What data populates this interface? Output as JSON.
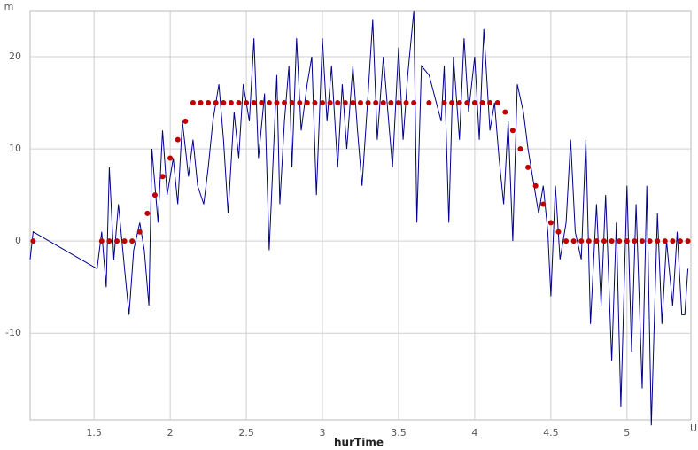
{
  "chart_data": {
    "type": "line",
    "x_label": "hurTime",
    "y_unit": "m",
    "x_unit": "U",
    "xlim": [
      1.08,
      5.42
    ],
    "ylim": [
      -19.4,
      25
    ],
    "xticks": [
      1.5,
      2,
      2.5,
      3,
      3.5,
      4,
      4.5,
      5
    ],
    "yticks": [
      -10,
      0,
      10,
      20
    ],
    "grid": true,
    "series": [
      {
        "color": "#00008b",
        "style": "line",
        "x": [
          1.08,
          1.1,
          1.52,
          1.55,
          1.58,
          1.6,
          1.63,
          1.66,
          1.7,
          1.73,
          1.76,
          1.8,
          1.83,
          1.86,
          1.88,
          1.92,
          1.95,
          1.98,
          2.02,
          2.05,
          2.08,
          2.12,
          2.15,
          2.18,
          2.22,
          2.25,
          2.28,
          2.32,
          2.35,
          2.38,
          2.42,
          2.45,
          2.48,
          2.52,
          2.55,
          2.58,
          2.62,
          2.65,
          2.7,
          2.72,
          2.75,
          2.78,
          2.8,
          2.83,
          2.86,
          2.9,
          2.93,
          2.96,
          3.0,
          3.03,
          3.06,
          3.1,
          3.13,
          3.16,
          3.2,
          3.23,
          3.26,
          3.3,
          3.33,
          3.36,
          3.4,
          3.43,
          3.46,
          3.5,
          3.53,
          3.56,
          3.6,
          3.62,
          3.65,
          3.7,
          3.78,
          3.8,
          3.83,
          3.86,
          3.9,
          3.93,
          3.96,
          4.0,
          4.03,
          4.06,
          4.1,
          4.13,
          4.16,
          4.19,
          4.22,
          4.25,
          4.28,
          4.32,
          4.35,
          4.38,
          4.42,
          4.45,
          4.48,
          4.5,
          4.53,
          4.56,
          4.6,
          4.63,
          4.66,
          4.7,
          4.73,
          4.76,
          4.8,
          4.83,
          4.86,
          4.9,
          4.93,
          4.96,
          5.0,
          5.03,
          5.06,
          5.1,
          5.13,
          5.16,
          5.2,
          5.23,
          5.26,
          5.3,
          5.33,
          5.36,
          5.38,
          5.4
        ],
        "values": [
          -2,
          1,
          -3,
          1,
          -5,
          8,
          -2,
          4,
          -3,
          -8,
          -1,
          2,
          -1,
          -7,
          10,
          2,
          12,
          5,
          9,
          4,
          13,
          7,
          11,
          6,
          4,
          8,
          13,
          17,
          11,
          3,
          14,
          9,
          17,
          13,
          22,
          9,
          16,
          -1,
          18,
          4,
          13,
          19,
          8,
          22,
          12,
          17,
          20,
          5,
          22,
          13,
          19,
          8,
          17,
          10,
          19,
          12,
          6,
          16,
          24,
          11,
          20,
          14,
          8,
          21,
          11,
          18,
          25,
          2,
          19,
          18,
          13,
          19,
          2,
          20,
          11,
          22,
          14,
          20,
          11,
          23,
          12,
          15,
          9,
          4,
          13,
          0,
          17,
          14,
          10,
          7,
          3,
          6,
          1,
          -6,
          6,
          -2,
          2,
          11,
          1,
          -2,
          11,
          -9,
          4,
          -7,
          5,
          -13,
          2,
          -18,
          6,
          -12,
          4,
          -16,
          6,
          -20,
          3,
          -9,
          0,
          -7,
          1,
          -8,
          -8,
          -3
        ]
      },
      {
        "color": "#c00000",
        "style": "dots",
        "x": [
          1.1,
          1.55,
          1.6,
          1.65,
          1.7,
          1.75,
          1.8,
          1.85,
          1.9,
          1.95,
          2.0,
          2.05,
          2.1,
          2.15,
          2.2,
          2.25,
          2.3,
          2.35,
          2.4,
          2.45,
          2.5,
          2.55,
          2.6,
          2.65,
          2.7,
          2.75,
          2.8,
          2.85,
          2.9,
          2.95,
          3.0,
          3.05,
          3.1,
          3.15,
          3.2,
          3.25,
          3.3,
          3.35,
          3.4,
          3.45,
          3.5,
          3.55,
          3.6,
          3.7,
          3.8,
          3.85,
          3.9,
          3.95,
          4.0,
          4.05,
          4.1,
          4.15,
          4.2,
          4.25,
          4.3,
          4.35,
          4.4,
          4.45,
          4.5,
          4.55,
          4.6,
          4.65,
          4.7,
          4.75,
          4.8,
          4.85,
          4.9,
          4.95,
          5.0,
          5.05,
          5.1,
          5.15,
          5.2,
          5.25,
          5.3,
          5.35,
          5.4
        ],
        "values": [
          0,
          0,
          0,
          0,
          0,
          0,
          1,
          3,
          5,
          7,
          9,
          11,
          13,
          15,
          15,
          15,
          15,
          15,
          15,
          15,
          15,
          15,
          15,
          15,
          15,
          15,
          15,
          15,
          15,
          15,
          15,
          15,
          15,
          15,
          15,
          15,
          15,
          15,
          15,
          15,
          15,
          15,
          15,
          15,
          15,
          15,
          15,
          15,
          15,
          15,
          15,
          15,
          14,
          12,
          10,
          8,
          6,
          4,
          2,
          1,
          0,
          0,
          0,
          0,
          0,
          0,
          0,
          0,
          0,
          0,
          0,
          0,
          0,
          0,
          0,
          0,
          0
        ]
      }
    ]
  }
}
